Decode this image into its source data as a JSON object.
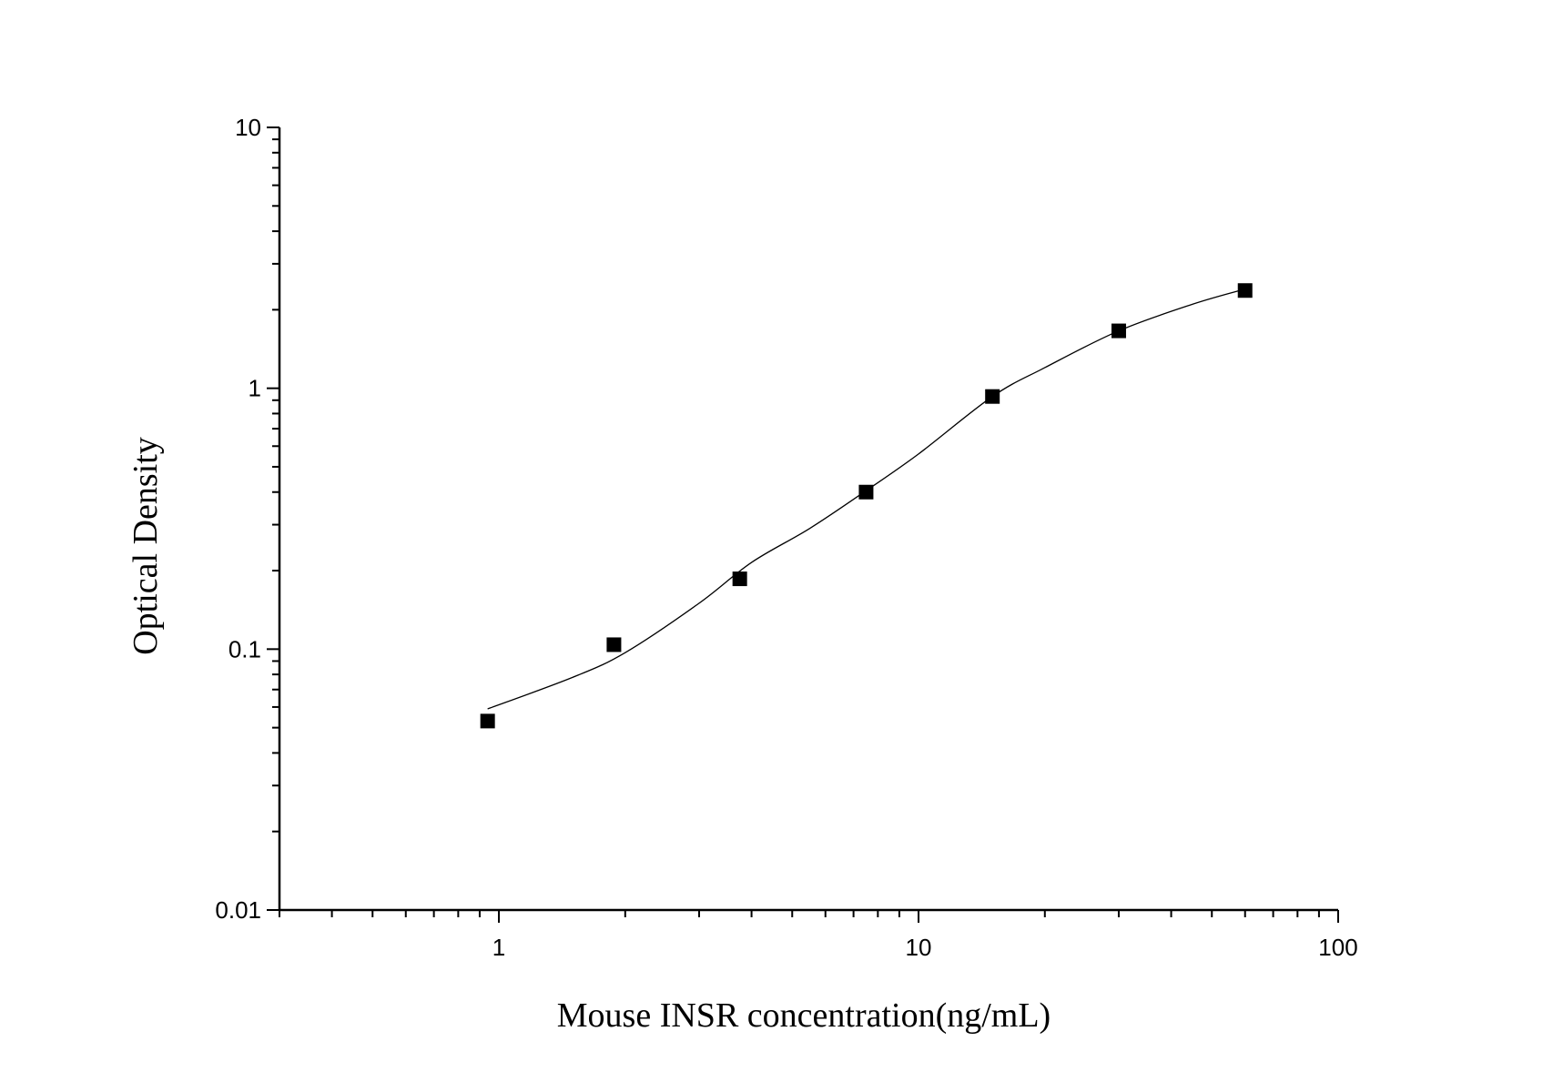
{
  "chart_data": {
    "type": "scatter",
    "xlabel": "Mouse INSR concentration(ng/mL)",
    "ylabel": "Optical Density",
    "xscale": "log",
    "yscale": "log",
    "xlim": [
      0.3,
      100
    ],
    "ylim": [
      0.01,
      10
    ],
    "x_ticks": [
      "1",
      "10",
      "100"
    ],
    "y_ticks": [
      "0.01",
      "0.1",
      "1",
      "10"
    ],
    "grid": false,
    "legend": "none",
    "series": [
      {
        "marker": "square",
        "color": "#000000",
        "points": [
          {
            "x": 0.94,
            "y": 0.053
          },
          {
            "x": 1.88,
            "y": 0.104
          },
          {
            "x": 3.75,
            "y": 0.186
          },
          {
            "x": 7.5,
            "y": 0.4
          },
          {
            "x": 15,
            "y": 0.93
          },
          {
            "x": 30,
            "y": 1.66
          },
          {
            "x": 60,
            "y": 2.37
          }
        ]
      }
    ],
    "fit_curve": {
      "color": "#000000",
      "points": [
        {
          "x": 0.94,
          "y": 0.059
        },
        {
          "x": 1.5,
          "y": 0.078
        },
        {
          "x": 2.0,
          "y": 0.097
        },
        {
          "x": 3.0,
          "y": 0.15
        },
        {
          "x": 4.0,
          "y": 0.215
        },
        {
          "x": 5.5,
          "y": 0.29
        },
        {
          "x": 7.5,
          "y": 0.405
        },
        {
          "x": 10,
          "y": 0.56
        },
        {
          "x": 15,
          "y": 0.93
        },
        {
          "x": 20,
          "y": 1.2
        },
        {
          "x": 30,
          "y": 1.66
        },
        {
          "x": 45,
          "y": 2.1
        },
        {
          "x": 60,
          "y": 2.4
        }
      ]
    }
  }
}
